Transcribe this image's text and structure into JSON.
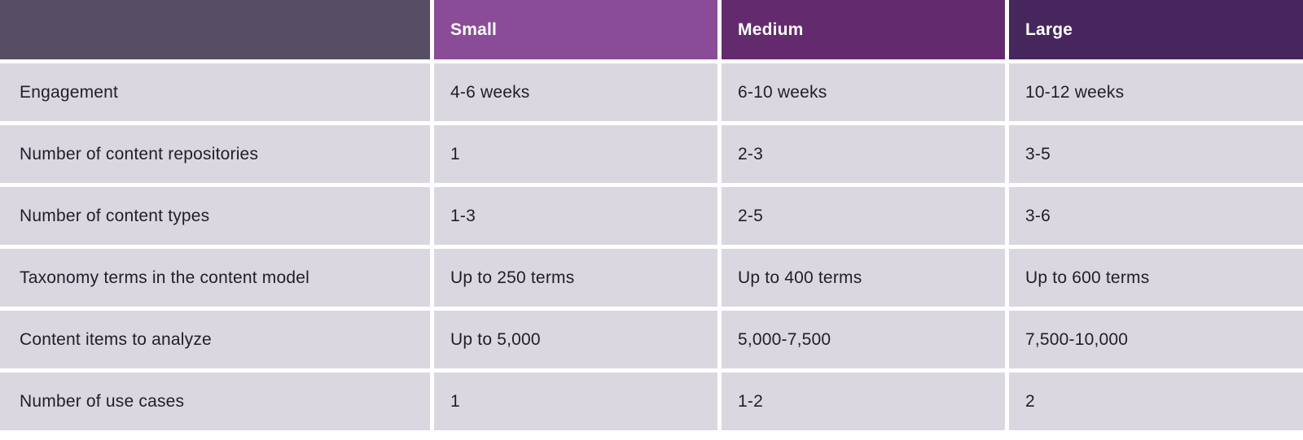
{
  "table": {
    "columns": [
      "",
      "Small",
      "Medium",
      "Large"
    ],
    "rows": [
      {
        "label": "Engagement",
        "small": "4-6 weeks",
        "medium": "6-10 weeks",
        "large": "10-12 weeks"
      },
      {
        "label": "Number of content repositories",
        "small": "1",
        "medium": "2-3",
        "large": "3-5"
      },
      {
        "label": "Number of content types",
        "small": "1-3",
        "medium": "2-5",
        "large": "3-6"
      },
      {
        "label": "Taxonomy terms in the content model",
        "small": "Up to 250 terms",
        "medium": "Up to 400 terms",
        "large": "Up to 600 terms"
      },
      {
        "label": "Content items to analyze",
        "small": "Up to 5,000",
        "medium": "5,000-7,500",
        "large": "7,500-10,000"
      },
      {
        "label": "Number of use cases",
        "small": "1",
        "medium": "1-2",
        "large": "2"
      }
    ]
  },
  "colors": {
    "header_blank_bg": "#574e66",
    "header_small_bg": "#8a4c97",
    "header_medium_bg": "#632b6e",
    "header_large_bg": "#46265c",
    "body_cell_bg": "#dad7e1",
    "body_text": "#211e29",
    "header_text": "#ffffff",
    "grid_gap": "#ffffff"
  },
  "chart_data": {
    "type": "table",
    "title": "",
    "column_headers": [
      "",
      "Small",
      "Medium",
      "Large"
    ],
    "row_headers": [
      "Engagement",
      "Number of content repositories",
      "Number of content types",
      "Taxonomy terms in the content model",
      "Content items to analyze",
      "Number of use cases"
    ],
    "cells": [
      [
        "4-6 weeks",
        "6-10 weeks",
        "10-12 weeks"
      ],
      [
        "1",
        "2-3",
        "3-5"
      ],
      [
        "1-3",
        "2-5",
        "3-6"
      ],
      [
        "Up to 250 terms",
        "Up to 400 terms",
        "Up to 600 terms"
      ],
      [
        "Up to 5,000",
        "5,000-7,500",
        "7,500-10,000"
      ],
      [
        "1",
        "1-2",
        "2"
      ]
    ]
  }
}
